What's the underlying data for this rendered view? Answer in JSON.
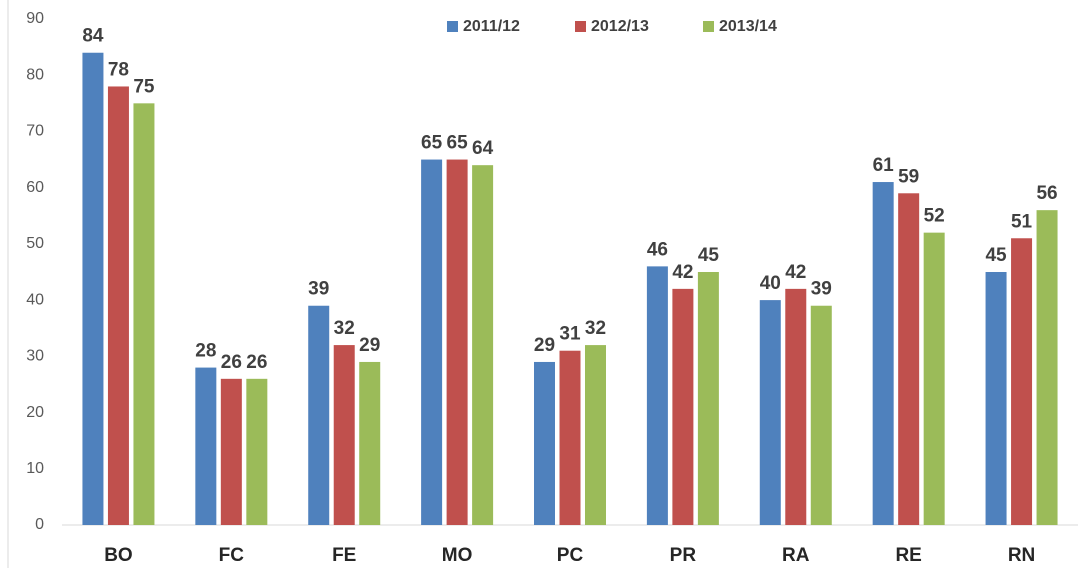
{
  "chart_data": {
    "type": "bar",
    "categories": [
      "BO",
      "FC",
      "FE",
      "MO",
      "PC",
      "PR",
      "RA",
      "RE",
      "RN"
    ],
    "series": [
      {
        "name": "2011/12",
        "color": "#4f81bd",
        "values": [
          84,
          28,
          39,
          65,
          29,
          46,
          40,
          61,
          45
        ]
      },
      {
        "name": "2012/13",
        "color": "#c0504d",
        "values": [
          78,
          26,
          32,
          65,
          31,
          42,
          42,
          59,
          51
        ]
      },
      {
        "name": "2013/14",
        "color": "#9bbb59",
        "values": [
          75,
          26,
          29,
          64,
          32,
          45,
          39,
          52,
          56
        ]
      }
    ],
    "ylim": [
      0,
      90
    ],
    "yticks": [
      0,
      10,
      20,
      30,
      40,
      50,
      60,
      70,
      80,
      90
    ],
    "grid": false,
    "legend": "top"
  }
}
